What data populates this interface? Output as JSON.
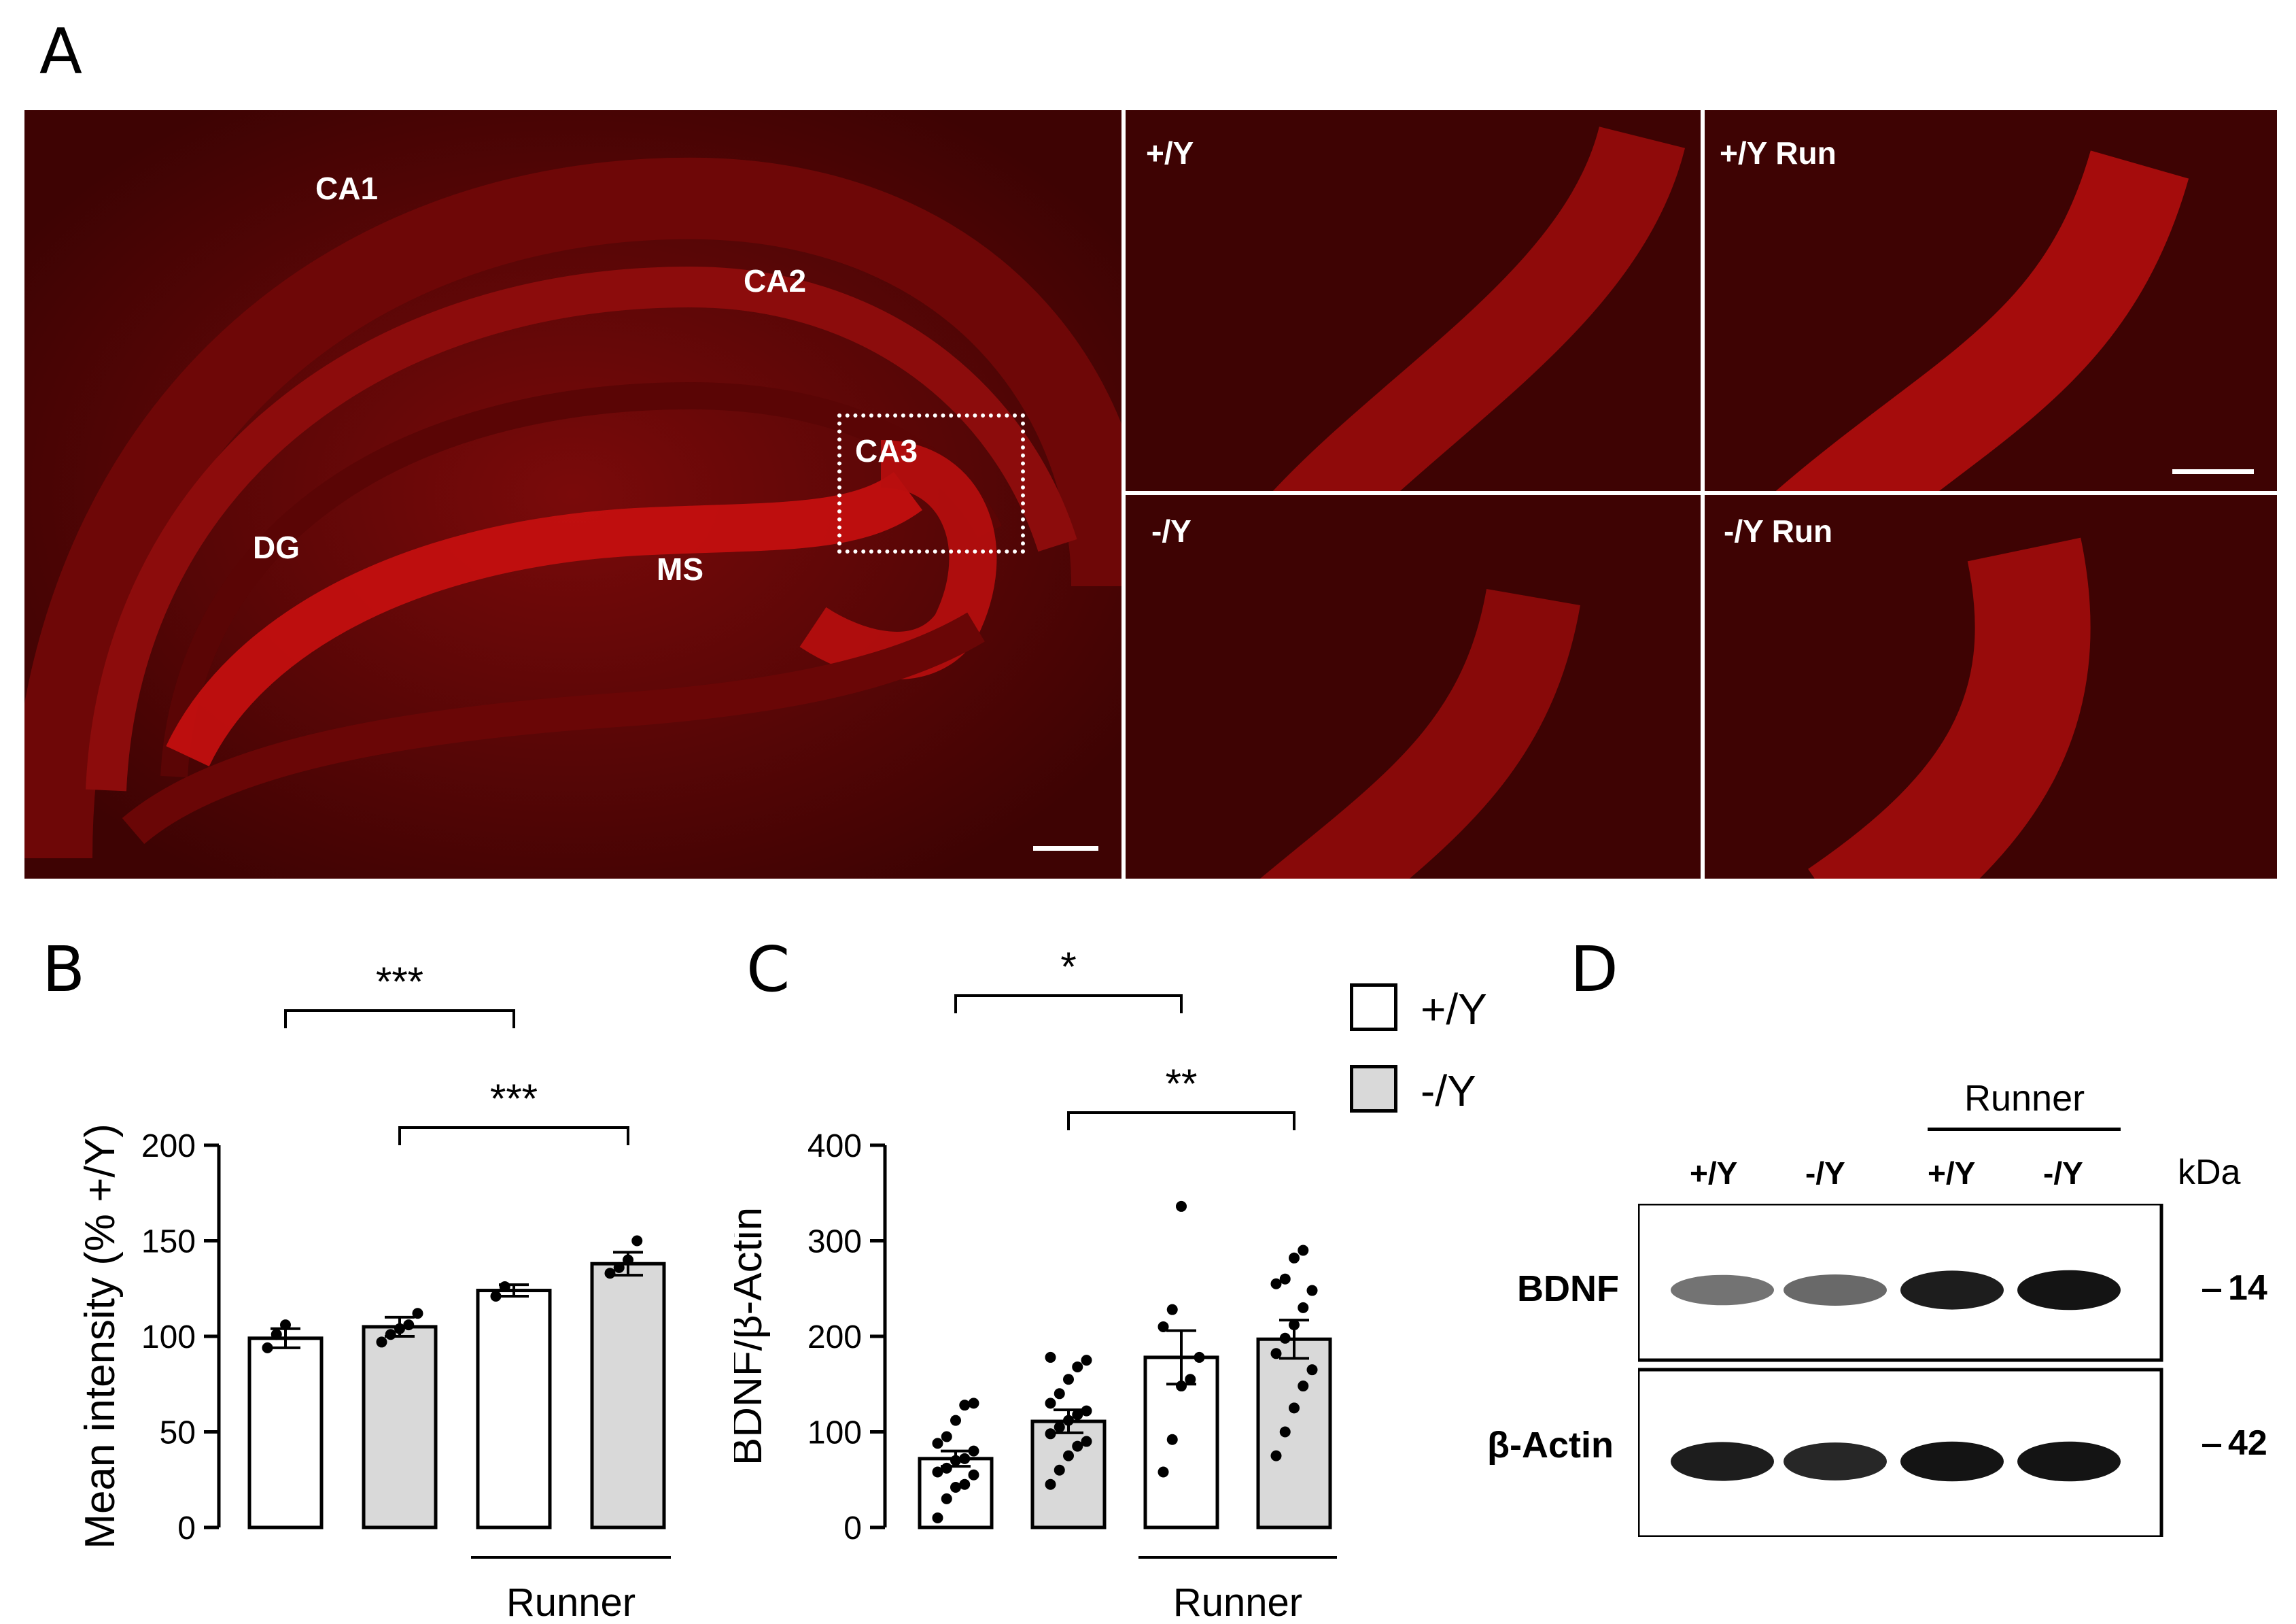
{
  "panels": {
    "a": "A",
    "b": "B",
    "c": "C",
    "d": "D"
  },
  "micrograph": {
    "overview_regions": [
      "CA1",
      "CA2",
      "CA3",
      "DG",
      "MS"
    ],
    "zoom_labels": [
      "+/Y",
      "+/Y Run",
      "-/Y",
      "-/Y Run"
    ],
    "colors": {
      "tissue": "#3e0303",
      "signal": "#c81010",
      "annotation": "#ffffff"
    }
  },
  "legend": [
    {
      "label": "+/Y",
      "color": "#ffffff"
    },
    {
      "label": "-/Y",
      "color": "#d9d9d9"
    }
  ],
  "chart_data": [
    {
      "panel": "B",
      "type": "bar",
      "categories": [
        "+/Y",
        "-/Y",
        "+/Y",
        "-/Y"
      ],
      "group_label": "Runner",
      "group_spans": [
        2,
        3
      ],
      "values": [
        99,
        105,
        124,
        138
      ],
      "sem": [
        5,
        5,
        3,
        6
      ],
      "points": [
        [
          94,
          101,
          106
        ],
        [
          97,
          101,
          104,
          106,
          112
        ],
        [
          121,
          126
        ],
        [
          133,
          136,
          140,
          150
        ]
      ],
      "bar_colors": [
        "#ffffff",
        "#d9d9d9",
        "#ffffff",
        "#d9d9d9"
      ],
      "ylabel": "Mean intensity (% +/Y)",
      "ylim": [
        0,
        200
      ],
      "yticks": [
        0,
        50,
        100,
        150,
        200
      ],
      "significance": [
        {
          "from": 0,
          "to": 2,
          "label": "***"
        },
        {
          "from": 1,
          "to": 3,
          "label": "***"
        }
      ]
    },
    {
      "panel": "C",
      "type": "bar",
      "categories": [
        "+/Y",
        "-/Y",
        "+/Y",
        "-/Y"
      ],
      "group_label": "Runner",
      "group_spans": [
        2,
        3
      ],
      "values": [
        72,
        111,
        178,
        197
      ],
      "sem": [
        8,
        12,
        28,
        20
      ],
      "points": [
        [
          10,
          30,
          42,
          45,
          55,
          58,
          62,
          70,
          72,
          80,
          88,
          95,
          112,
          128,
          130
        ],
        [
          45,
          60,
          75,
          85,
          90,
          98,
          105,
          112,
          118,
          122,
          130,
          140,
          155,
          168,
          175,
          178
        ],
        [
          58,
          92,
          148,
          155,
          178,
          210,
          228,
          336
        ],
        [
          75,
          100,
          125,
          148,
          165,
          182,
          198,
          212,
          230,
          248,
          255,
          260,
          282,
          290
        ]
      ],
      "bar_colors": [
        "#ffffff",
        "#d9d9d9",
        "#ffffff",
        "#d9d9d9"
      ],
      "ylabel": "BDNF/β-Actin",
      "ylim": [
        0,
        400
      ],
      "yticks": [
        0,
        100,
        200,
        300,
        400
      ],
      "significance": [
        {
          "from": 0,
          "to": 2,
          "label": "*"
        },
        {
          "from": 1,
          "to": 3,
          "label": "**"
        }
      ]
    }
  ],
  "blot": {
    "group_label": "Runner",
    "lanes": [
      "+/Y",
      "-/Y",
      "+/Y",
      "-/Y"
    ],
    "unit": "kDa",
    "rows": [
      {
        "label": "BDNF",
        "marker": "14",
        "intensities": [
          0.45,
          0.5,
          0.9,
          0.95
        ]
      },
      {
        "label": "β-Actin",
        "marker": "42",
        "intensities": [
          0.9,
          0.85,
          0.95,
          0.95
        ]
      }
    ]
  }
}
